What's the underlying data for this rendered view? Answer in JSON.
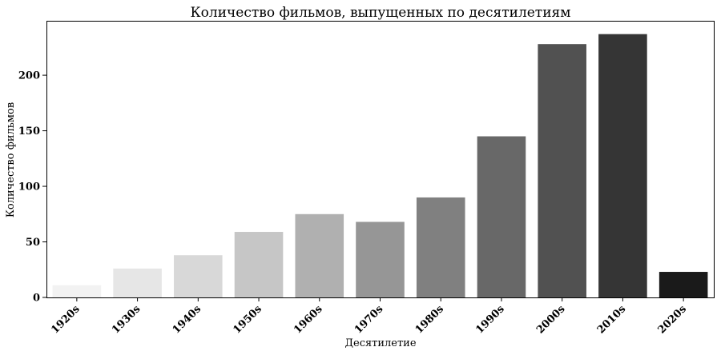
{
  "chart_data": {
    "type": "bar",
    "title": "Количество фильмов, выпущенных по десятилетиям",
    "xlabel": "Десятилетие",
    "ylabel": "Количество фильмов",
    "categories": [
      "1920s",
      "1930s",
      "1940s",
      "1950s",
      "1960s",
      "1970s",
      "1980s",
      "1990s",
      "2000s",
      "2010s",
      "2020s"
    ],
    "values": [
      11,
      26,
      38,
      59,
      75,
      68,
      90,
      145,
      228,
      237,
      23
    ],
    "colors": [
      "#f2f2f2",
      "#e6e6e6",
      "#d8d8d8",
      "#c6c6c6",
      "#b0b0b0",
      "#969696",
      "#808080",
      "#686868",
      "#515151",
      "#353535",
      "#1a1a1a"
    ],
    "yticks": [
      0,
      50,
      100,
      150,
      200
    ],
    "ylim": [
      0,
      249
    ],
    "grid": false
  }
}
